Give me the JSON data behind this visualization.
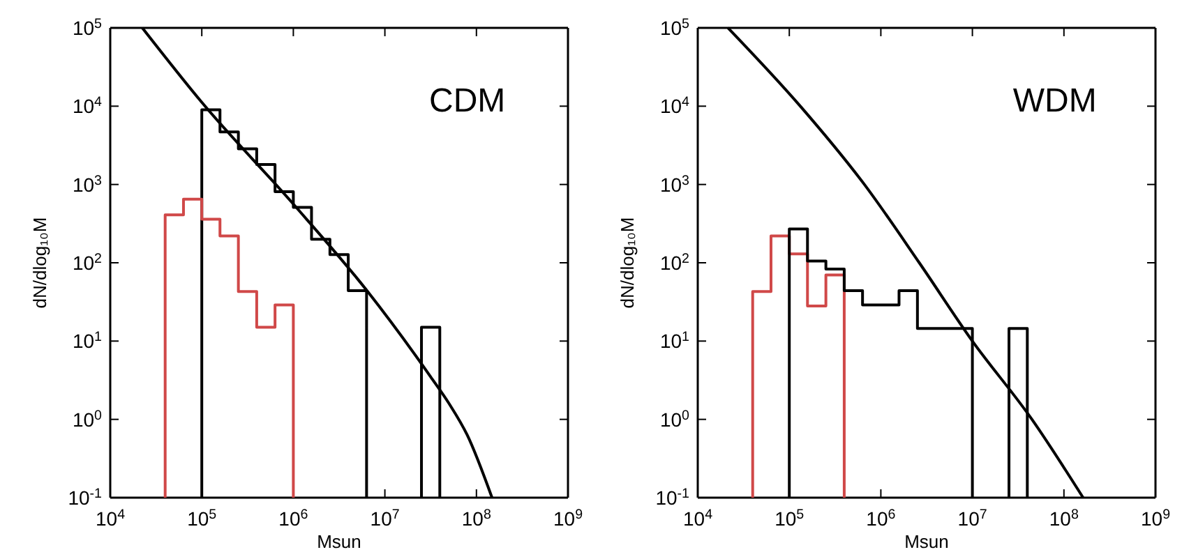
{
  "chart_data": [
    {
      "type": "histogram",
      "xlabel": "Msun",
      "ylabel": "dN/dlog₁₀M",
      "annotations": [
        "CDM"
      ],
      "log": "xy",
      "grid": false,
      "xlim": [
        10000,
        1000000000
      ],
      "ylim": [
        0.1,
        100000
      ],
      "xticks": [
        {
          "value": 10000,
          "label": "10$^{4}$"
        },
        {
          "value": 100000,
          "label": "10$^{5}$"
        },
        {
          "value": 1000000,
          "label": "10$^{6}$"
        },
        {
          "value": 10000000,
          "label": "10$^{7}$"
        },
        {
          "value": 100000000,
          "label": "10$^{8}$"
        },
        {
          "value": 1000000000,
          "label": "10$^{9}$"
        }
      ],
      "yticks": [
        {
          "value": 0.1,
          "label": "10$^{-1}$"
        },
        {
          "value": 1,
          "label": "10$^{0}$"
        },
        {
          "value": 10,
          "label": "10$^{1}$"
        },
        {
          "value": 100,
          "label": "10$^{2}$"
        },
        {
          "value": 1000,
          "label": "10$^{3}$"
        },
        {
          "value": 10000,
          "label": "10$^{4}$"
        },
        {
          "value": 100000,
          "label": "10$^{5}$"
        }
      ],
      "series": [
        {
          "color": "#000000",
          "bins": [
            100000,
            158000,
            251000,
            398000,
            631000,
            1000000,
            1580000,
            2510000,
            3980000,
            6310000,
            25100000,
            39800000
          ],
          "values": [
            9000,
            4700,
            2850,
            1800,
            810,
            510,
            200,
            127,
            44,
            null,
            15
          ]
        },
        {
          "color": "#d04848",
          "bins": [
            39800,
            63100,
            100000,
            158000,
            251000,
            398000,
            631000,
            1000000
          ],
          "values": [
            410,
            650,
            360,
            220,
            43,
            15,
            29
          ]
        },
        {
          "type": "line",
          "color": "#000000",
          "x": [
            22400,
            100000,
            1000000,
            6310000,
            31600000,
            50100000,
            79400000,
            148000000
          ],
          "values": [
            100000,
            11200,
            562,
            44.7,
            3.5,
            1.6,
            0.63,
            0.1
          ]
        }
      ]
    },
    {
      "type": "histogram",
      "xlabel": "Msun",
      "ylabel": "dN/dlog₁₀M",
      "annotations": [
        "WDM"
      ],
      "log": "xy",
      "grid": false,
      "xlim": [
        10000,
        1000000000
      ],
      "ylim": [
        0.1,
        100000
      ],
      "xticks": [
        {
          "value": 10000,
          "label": "10$^{4}$"
        },
        {
          "value": 100000,
          "label": "10$^{5}$"
        },
        {
          "value": 1000000,
          "label": "10$^{6}$"
        },
        {
          "value": 10000000,
          "label": "10$^{7}$"
        },
        {
          "value": 100000000,
          "label": "10$^{8}$"
        },
        {
          "value": 1000000000,
          "label": "10$^{9}$"
        }
      ],
      "yticks": [
        {
          "value": 0.1,
          "label": "10$^{-1}$"
        },
        {
          "value": 1,
          "label": "10$^{0}$"
        },
        {
          "value": 10,
          "label": "10$^{1}$"
        },
        {
          "value": 100,
          "label": "10$^{2}$"
        },
        {
          "value": 1000,
          "label": "10$^{3}$"
        },
        {
          "value": 10000,
          "label": "10$^{4}$"
        },
        {
          "value": 100000,
          "label": "10$^{5}$"
        }
      ],
      "series": [
        {
          "color": "#d04848",
          "bins": [
            39800,
            63100,
            100000,
            158000,
            251000,
            398000
          ],
          "values": [
            43,
            220,
            130,
            28,
            70
          ]
        },
        {
          "color": "#000000",
          "bins": [
            100000,
            158000,
            251000,
            398000,
            631000,
            1000000,
            1580000,
            2510000,
            10000000,
            25100000,
            39800000
          ],
          "values": [
            270,
            105,
            83,
            44,
            29,
            29,
            44,
            14.5,
            null,
            14.5
          ]
        },
        {
          "type": "line",
          "color": "#000000",
          "x": [
            21400,
            132000,
            661000,
            2630000,
            10000000,
            44700000,
            162000000
          ],
          "values": [
            100000,
            10000,
            1000,
            100,
            10,
            1,
            0.1
          ]
        }
      ]
    }
  ]
}
